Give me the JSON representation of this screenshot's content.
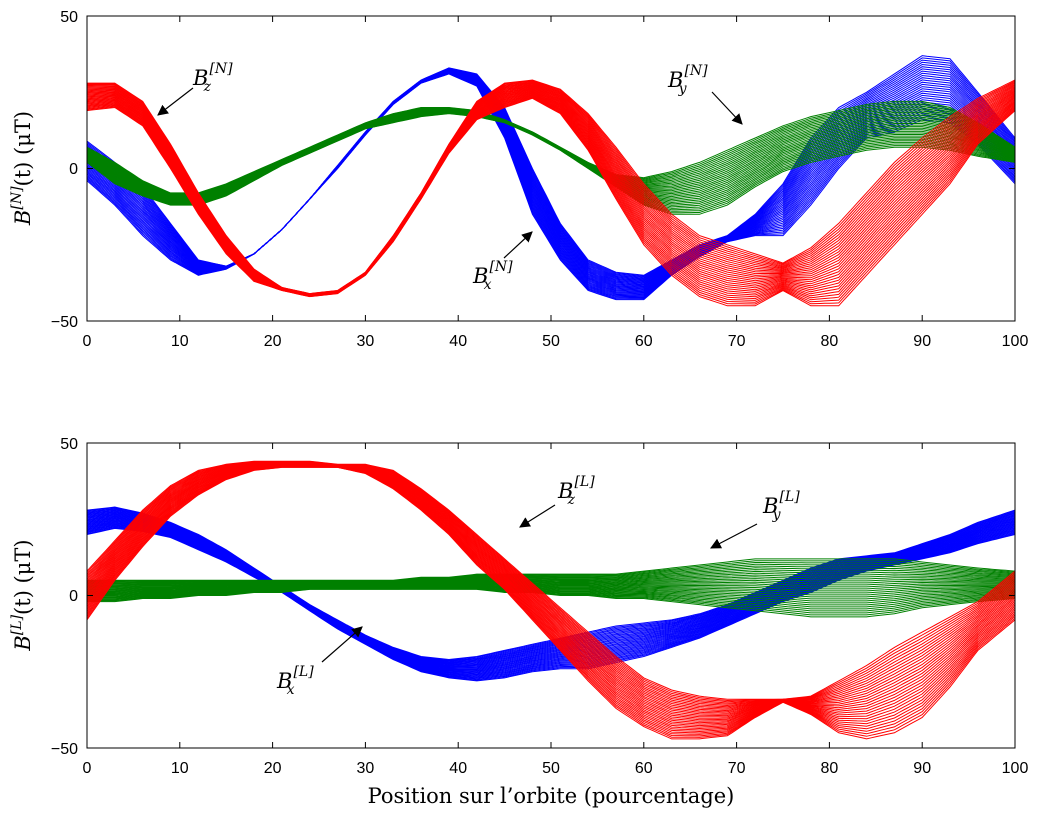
{
  "chart_data": [
    {
      "type": "line",
      "panel": "top",
      "ylabel": "B^{[N]}(t) (μT)",
      "ylabel_parts": {
        "base": "B",
        "sup": "[N]",
        "rest": "(t) (μT)"
      },
      "xlabel": "",
      "xlim": [
        0,
        100
      ],
      "ylim": [
        -50,
        50
      ],
      "xticks": [
        "0",
        "10",
        "20",
        "30",
        "40",
        "50",
        "60",
        "70",
        "80",
        "90",
        "100"
      ],
      "yticks": [
        "50",
        "0",
        "−50"
      ],
      "grid": false,
      "series": [
        {
          "component": "x",
          "color": "#0000ff",
          "curves": 30,
          "spread_growth": 1.0,
          "x": [
            0,
            3,
            6,
            9,
            12,
            15,
            18,
            21,
            24,
            27,
            30,
            33,
            36,
            39,
            42,
            45,
            48,
            51,
            54,
            57,
            60,
            63,
            66,
            69,
            72,
            75,
            78,
            81,
            84,
            87,
            90,
            93,
            96,
            100
          ],
          "upper": [
            9,
            2,
            -6,
            -18,
            -30,
            -32,
            -28,
            -20,
            -10,
            1,
            12,
            22,
            29,
            33,
            31,
            20,
            0,
            -18,
            -30,
            -34,
            -35,
            -30,
            -25,
            -22,
            -15,
            -5,
            10,
            20,
            25,
            31,
            37,
            36,
            25,
            10
          ],
          "lower": [
            -4,
            -12,
            -22,
            -30,
            -35,
            -33,
            -28,
            -20,
            -10,
            0,
            11,
            21,
            28,
            31,
            27,
            10,
            -15,
            -30,
            -40,
            -43,
            -43,
            -35,
            -29,
            -24,
            -22,
            -22,
            -12,
            0,
            10,
            12,
            16,
            15,
            8,
            -5
          ]
        },
        {
          "component": "y",
          "color": "#008000",
          "curves": 30,
          "spread_growth": 1.0,
          "x": [
            0,
            3,
            6,
            9,
            12,
            15,
            18,
            21,
            24,
            27,
            30,
            33,
            36,
            39,
            42,
            45,
            48,
            51,
            54,
            57,
            60,
            63,
            66,
            69,
            72,
            75,
            78,
            81,
            84,
            87,
            90,
            93,
            96,
            100
          ],
          "upper": [
            7,
            2,
            -4,
            -8,
            -8,
            -5,
            -1,
            3,
            7,
            11,
            15,
            18,
            20,
            20,
            19,
            16,
            12,
            7,
            2,
            -2,
            -3,
            -1,
            2,
            6,
            10,
            14,
            17,
            19,
            21,
            22,
            22,
            20,
            15,
            7
          ],
          "lower": [
            2,
            -5,
            -9,
            -12,
            -12,
            -9,
            -4,
            1,
            5,
            9,
            13,
            15,
            17,
            18,
            17,
            15,
            11,
            6,
            0,
            -6,
            -12,
            -15,
            -15,
            -12,
            -6,
            -1,
            2,
            4,
            6,
            7,
            7,
            6,
            4,
            2
          ]
        },
        {
          "component": "z",
          "color": "#ff0000",
          "curves": 30,
          "spread_growth": 1.0,
          "x": [
            0,
            3,
            6,
            9,
            12,
            15,
            18,
            21,
            24,
            27,
            30,
            33,
            36,
            39,
            42,
            45,
            48,
            51,
            54,
            57,
            60,
            63,
            66,
            69,
            72,
            75,
            78,
            81,
            84,
            87,
            90,
            93,
            96,
            100
          ],
          "upper": [
            28,
            28,
            22,
            8,
            -8,
            -22,
            -33,
            -39,
            -41,
            -40,
            -34,
            -22,
            -8,
            8,
            22,
            28,
            29,
            26,
            18,
            7,
            -5,
            -15,
            -22,
            -25,
            -28,
            -31,
            -26,
            -18,
            -8,
            2,
            10,
            17,
            23,
            29
          ],
          "lower": [
            19,
            20,
            14,
            0,
            -15,
            -28,
            -37,
            -40,
            -42,
            -41,
            -35,
            -24,
            -10,
            5,
            16,
            20,
            23,
            18,
            6,
            -10,
            -25,
            -35,
            -42,
            -45,
            -45,
            -40,
            -45,
            -45,
            -35,
            -25,
            -15,
            -5,
            8,
            19
          ]
        }
      ],
      "annotations": [
        {
          "base": "B",
          "sub": "z",
          "sup": "[N]"
        },
        {
          "base": "B",
          "sub": "y",
          "sup": "[N]"
        },
        {
          "base": "B",
          "sub": "x",
          "sup": "[N]"
        }
      ]
    },
    {
      "type": "line",
      "panel": "bottom",
      "ylabel": "B^{[L]}(t) (μT)",
      "ylabel_parts": {
        "base": "B",
        "sup": "[L]",
        "rest": "(t) (μT)"
      },
      "xlabel": "Position sur l’orbite (pourcentage)",
      "xlim": [
        0,
        100
      ],
      "ylim": [
        -50,
        50
      ],
      "xticks": [
        "0",
        "10",
        "20",
        "30",
        "40",
        "50",
        "60",
        "70",
        "80",
        "90",
        "100"
      ],
      "yticks": [
        "50",
        "0",
        "−50"
      ],
      "grid": false,
      "series": [
        {
          "component": "x",
          "color": "#0000ff",
          "curves": 30,
          "spread_growth": 1.0,
          "x": [
            0,
            3,
            6,
            9,
            12,
            15,
            18,
            21,
            24,
            27,
            30,
            33,
            36,
            39,
            42,
            45,
            48,
            51,
            54,
            57,
            60,
            63,
            66,
            69,
            72,
            75,
            78,
            81,
            84,
            87,
            90,
            93,
            96,
            100
          ],
          "upper": [
            28,
            29,
            27,
            24,
            20,
            15,
            9,
            3,
            -3,
            -8,
            -13,
            -17,
            -20,
            -21,
            -20,
            -18,
            -16,
            -14,
            -12,
            -10,
            -9,
            -8,
            -6,
            -3,
            1,
            5,
            9,
            12,
            13,
            14,
            17,
            20,
            24,
            28
          ],
          "lower": [
            20,
            22,
            21,
            19,
            15,
            11,
            6,
            1,
            -5,
            -11,
            -16,
            -21,
            -25,
            -27,
            -28,
            -27,
            -25,
            -24,
            -24,
            -22,
            -20,
            -17,
            -14,
            -10,
            -6,
            -2,
            1,
            5,
            8,
            10,
            12,
            14,
            17,
            20
          ]
        },
        {
          "component": "y",
          "color": "#008000",
          "curves": 30,
          "spread_growth": 1.0,
          "x": [
            0,
            3,
            6,
            9,
            12,
            15,
            18,
            21,
            24,
            27,
            30,
            33,
            36,
            39,
            42,
            45,
            48,
            51,
            54,
            57,
            60,
            63,
            66,
            69,
            72,
            75,
            78,
            81,
            84,
            87,
            90,
            93,
            96,
            100
          ],
          "upper": [
            5,
            5,
            5,
            5,
            5,
            5,
            5,
            5,
            5,
            5,
            5,
            5,
            6,
            6,
            7,
            7,
            7,
            7,
            7,
            7,
            8,
            9,
            10,
            11,
            12,
            12,
            12,
            12,
            12,
            12,
            11,
            10,
            9,
            8
          ],
          "lower": [
            -2,
            -2,
            -1,
            -1,
            0,
            0,
            1,
            1,
            2,
            2,
            2,
            2,
            2,
            2,
            2,
            1,
            1,
            0,
            0,
            -1,
            -1,
            -2,
            -3,
            -4,
            -5,
            -6,
            -7,
            -7,
            -7,
            -6,
            -4,
            -3,
            -2,
            -1
          ]
        },
        {
          "component": "z",
          "color": "#ff0000",
          "curves": 30,
          "spread_growth": 1.0,
          "x": [
            0,
            3,
            6,
            9,
            12,
            15,
            18,
            21,
            24,
            27,
            30,
            33,
            36,
            39,
            42,
            45,
            48,
            51,
            54,
            57,
            60,
            63,
            66,
            69,
            72,
            75,
            78,
            81,
            84,
            87,
            90,
            93,
            96,
            100
          ],
          "upper": [
            8,
            18,
            28,
            36,
            41,
            43,
            44,
            44,
            44,
            43,
            43,
            41,
            35,
            28,
            20,
            12,
            4,
            -4,
            -12,
            -20,
            -27,
            -31,
            -33,
            -34,
            -34,
            -34,
            -33,
            -28,
            -23,
            -17,
            -12,
            -7,
            -2,
            8
          ],
          "lower": [
            -8,
            5,
            16,
            26,
            33,
            38,
            41,
            42,
            42,
            42,
            40,
            35,
            28,
            20,
            10,
            2,
            -8,
            -18,
            -28,
            -37,
            -43,
            -47,
            -47,
            -46,
            -40,
            -35,
            -39,
            -45,
            -47,
            -45,
            -40,
            -30,
            -18,
            -8
          ]
        }
      ],
      "annotations": [
        {
          "base": "B",
          "sub": "z",
          "sup": "[L]"
        },
        {
          "base": "B",
          "sub": "y",
          "sup": "[L]"
        },
        {
          "base": "B",
          "sub": "x",
          "sup": "[L]"
        }
      ]
    }
  ]
}
